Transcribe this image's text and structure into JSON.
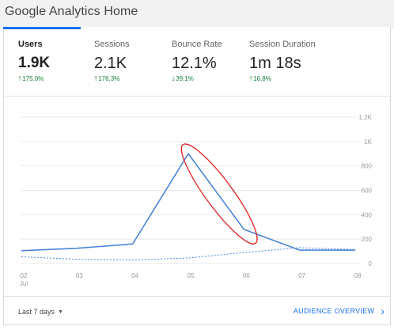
{
  "app": {
    "title": "Google Analytics Home"
  },
  "metrics": [
    {
      "label": "Users",
      "value": "1.9K",
      "change": "175.0%",
      "direction": "up"
    },
    {
      "label": "Sessions",
      "value": "2.1K",
      "change": "176.3%",
      "direction": "up"
    },
    {
      "label": "Bounce Rate",
      "value": "12.1%",
      "change": "39.1%",
      "direction": "down"
    },
    {
      "label": "Session Duration",
      "value": "1m 18s",
      "change": "16.8%",
      "direction": "up"
    }
  ],
  "colors": {
    "accent": "#1a73e8",
    "positive": "#188038",
    "line": "#4a86d8",
    "annotation": "#e02020",
    "grid": "#e9e9e9",
    "axis_text": "#9a9a9a"
  },
  "footer": {
    "date_range": "Last 7 days",
    "audience_link": "AUDIENCE OVERVIEW"
  },
  "icons": {
    "dropdown": "caret-down-icon",
    "next": "chevron-right-icon",
    "up": "arrow-up-icon",
    "down": "arrow-down-icon"
  },
  "chart_data": {
    "type": "line",
    "title": "",
    "xlabel": "",
    "ylabel": "",
    "x": [
      "02",
      "03",
      "04",
      "05",
      "06",
      "07",
      "08"
    ],
    "x_sublabel": {
      "index": 0,
      "text": "Jul"
    },
    "yticks": [
      {
        "value": 0,
        "label": "0"
      },
      {
        "value": 200,
        "label": "200"
      },
      {
        "value": 400,
        "label": "400"
      },
      {
        "value": 600,
        "label": "600"
      },
      {
        "value": 800,
        "label": "800"
      },
      {
        "value": 1000,
        "label": "1K"
      },
      {
        "value": 1200,
        "label": "1.2K"
      }
    ],
    "ylim": [
      0,
      1200
    ],
    "grid": true,
    "y_axis_side": "right",
    "series": [
      {
        "style": "solid",
        "values": [
          105,
          125,
          160,
          900,
          280,
          110,
          110
        ]
      },
      {
        "style": "dashed",
        "values": [
          55,
          35,
          30,
          45,
          90,
          130,
          115
        ]
      }
    ],
    "annotation": {
      "shape": "ellipse",
      "around_x": [
        "05",
        "06"
      ]
    }
  }
}
